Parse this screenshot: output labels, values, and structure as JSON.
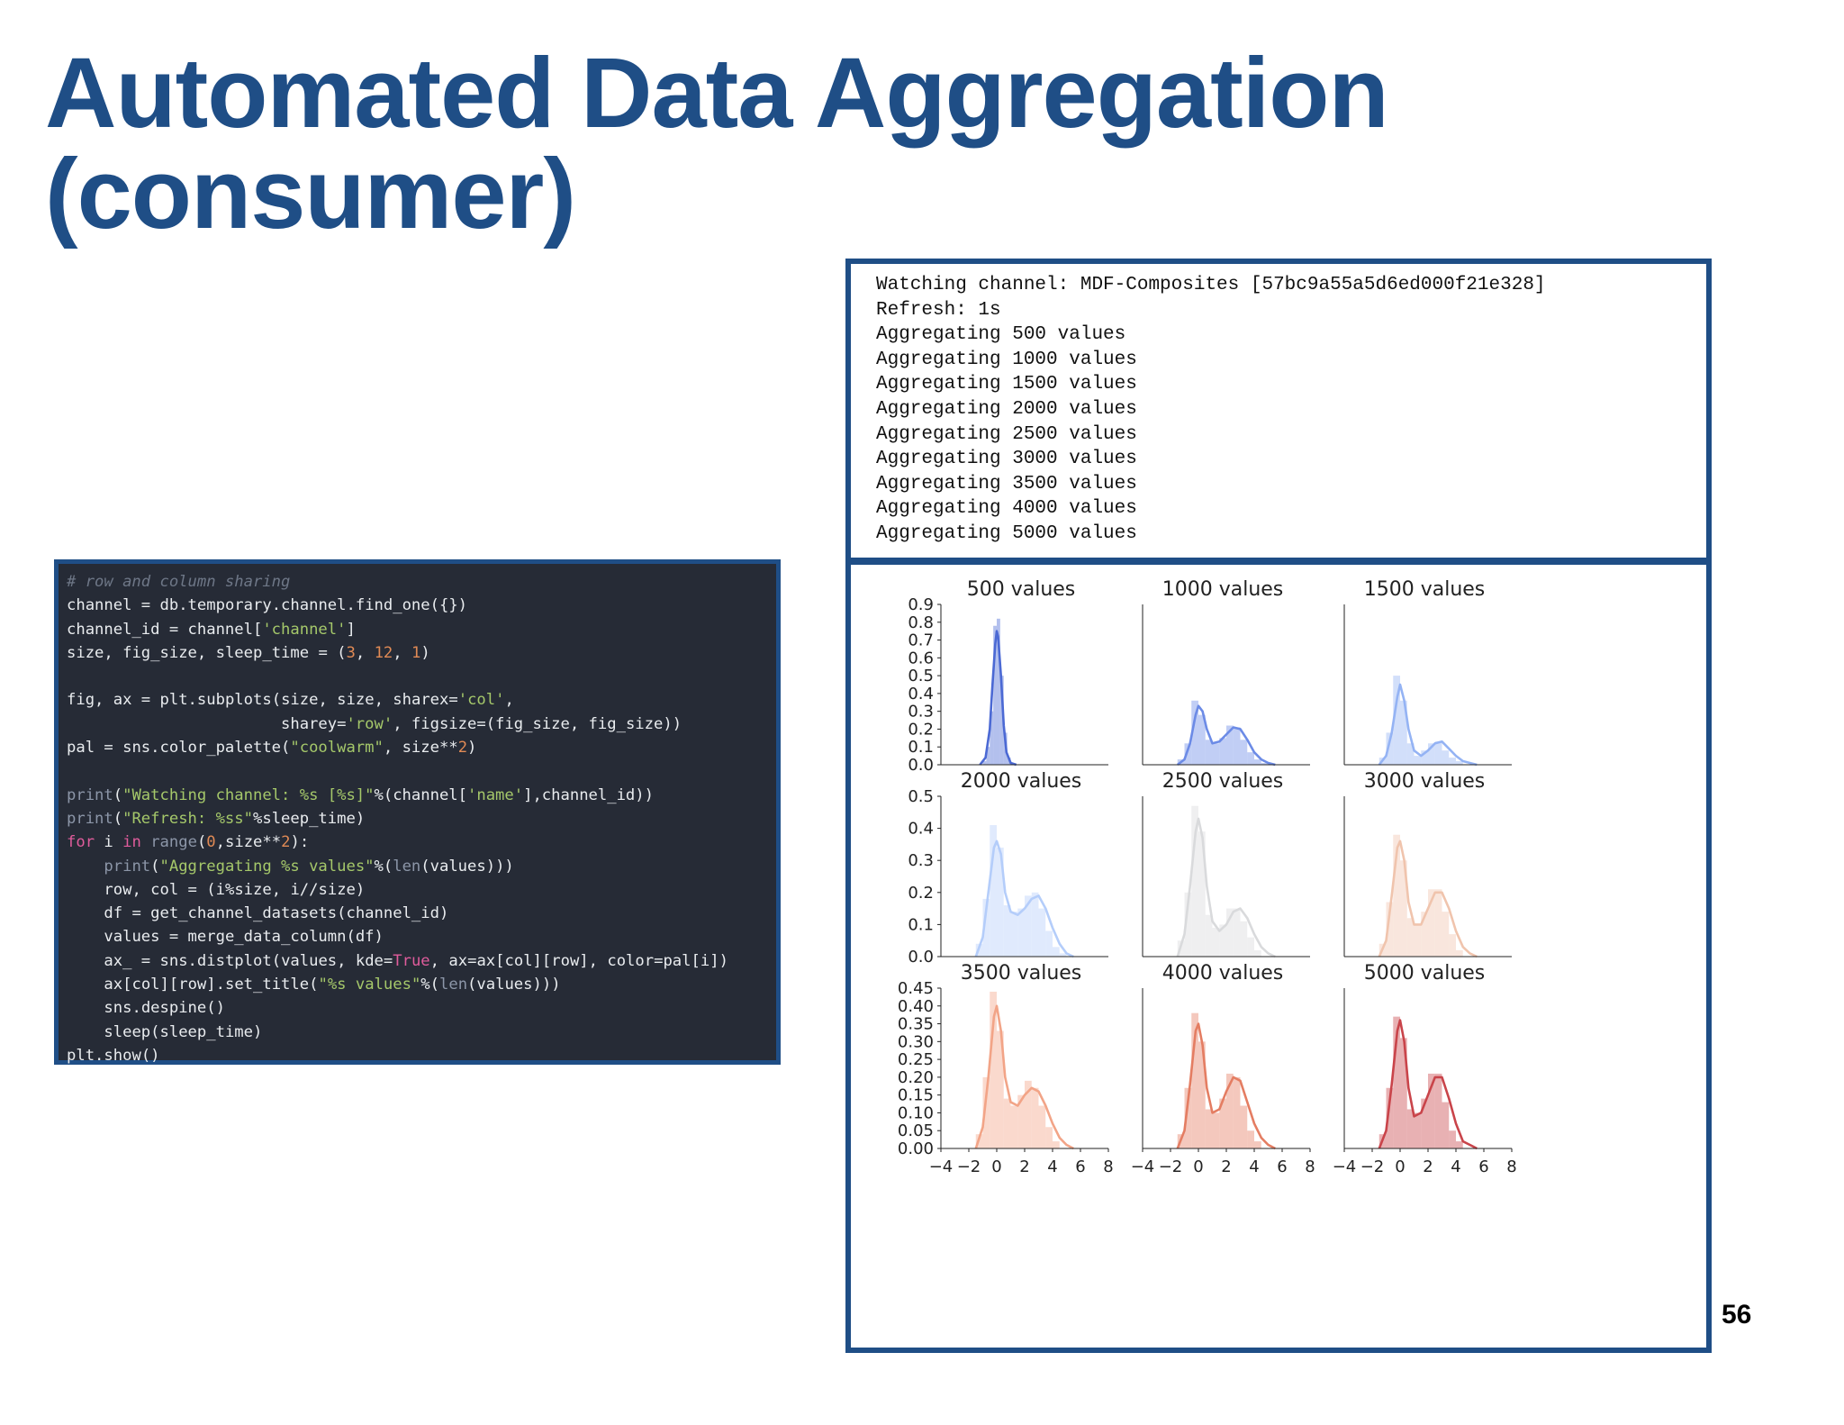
{
  "slide": {
    "title_line1": "Automated Data Aggregation",
    "title_line2": "(consumer)",
    "page_number": "56"
  },
  "code": {
    "lines": [
      "# row and column sharing",
      "channel = db.temporary.channel.find_one({})",
      "channel_id = channel['channel']",
      "size, fig_size, sleep_time = (3, 12, 1)",
      "",
      "fig, ax = plt.subplots(size, size, sharex='col',",
      "                       sharey='row', figsize=(fig_size, fig_size))",
      "pal = sns.color_palette(\"coolwarm\", size**2)",
      "",
      "print(\"Watching channel: %s [%s]\"%(channel['name'],channel_id))",
      "print(\"Refresh: %ss\"%sleep_time)",
      "for i in range(0,size**2):",
      "    print(\"Aggregating %s values\"%(len(values)))",
      "    row, col = (i%size, i//size)",
      "    df = get_channel_datasets(channel_id)",
      "    values = merge_data_column(df)",
      "    ax_ = sns.distplot(values, kde=True, ax=ax[col][row], color=pal[i])",
      "    ax[col][row].set_title(\"%s values\"%(len(values)))",
      "    sns.despine()",
      "    sleep(sleep_time)",
      "plt.show()"
    ]
  },
  "console": {
    "lines": [
      "Watching channel: MDF-Composites [57bc9a55a5d6ed000f21e328]",
      "Refresh: 1s",
      "Aggregating 500 values",
      "Aggregating 1000 values",
      "Aggregating 1500 values",
      "Aggregating 2000 values",
      "Aggregating 2500 values",
      "Aggregating 3000 values",
      "Aggregating 3500 values",
      "Aggregating 4000 values",
      "Aggregating 5000 values"
    ]
  },
  "chart_data": {
    "type": "area",
    "layout": "3x3 grid, shared x per column, shared y per row",
    "xlim": [
      -4,
      8
    ],
    "x_ticks": [
      "−4",
      "−2",
      "0",
      "2",
      "4",
      "6",
      "8"
    ],
    "rows": [
      {
        "ylim": [
          0,
          0.9
        ],
        "y_ticks": [
          "0.0",
          "0.1",
          "0.2",
          "0.3",
          "0.4",
          "0.5",
          "0.6",
          "0.7",
          "0.8",
          "0.9"
        ],
        "tick_values": [
          0,
          0.1,
          0.2,
          0.3,
          0.4,
          0.5,
          0.6,
          0.7,
          0.8,
          0.9
        ]
      },
      {
        "ylim": [
          0,
          0.5
        ],
        "y_ticks": [
          "0.0",
          "0.1",
          "0.2",
          "0.3",
          "0.4",
          "0.5"
        ],
        "tick_values": [
          0,
          0.1,
          0.2,
          0.3,
          0.4,
          0.5
        ]
      },
      {
        "ylim": [
          0,
          0.45
        ],
        "y_ticks": [
          "0.00",
          "0.05",
          "0.10",
          "0.15",
          "0.20",
          "0.25",
          "0.30",
          "0.35",
          "0.40",
          "0.45"
        ],
        "tick_values": [
          0,
          0.05,
          0.1,
          0.15,
          0.2,
          0.25,
          0.3,
          0.35,
          0.4,
          0.45
        ]
      }
    ],
    "panels": [
      {
        "title": "500 values",
        "color": "#4b69d4",
        "kde": {
          "x": [
            -1.2,
            -0.8,
            -0.5,
            -0.3,
            -0.1,
            0.0,
            0.1,
            0.3,
            0.5,
            0.7,
            1.0,
            1.4
          ],
          "y": [
            0.0,
            0.04,
            0.2,
            0.45,
            0.68,
            0.75,
            0.72,
            0.5,
            0.22,
            0.07,
            0.01,
            0.0
          ]
        },
        "bins": {
          "edges_start": -1.0,
          "width": 0.25,
          "heights": [
            0.02,
            0.1,
            0.3,
            0.78,
            0.82,
            0.5,
            0.18,
            0.04
          ]
        }
      },
      {
        "title": "1000 values",
        "color": "#6c8be6",
        "kde": {
          "x": [
            -1.5,
            -1.0,
            -0.6,
            -0.2,
            0.0,
            0.3,
            0.6,
            1.0,
            1.5,
            2.0,
            2.5,
            3.0,
            3.5,
            4.0,
            4.5,
            5.0,
            5.5
          ],
          "y": [
            0.0,
            0.03,
            0.12,
            0.28,
            0.33,
            0.3,
            0.2,
            0.12,
            0.13,
            0.17,
            0.21,
            0.2,
            0.14,
            0.07,
            0.03,
            0.01,
            0.0
          ]
        },
        "bins": {
          "edges_start": -1.5,
          "width": 0.5,
          "heights": [
            0.03,
            0.12,
            0.36,
            0.28,
            0.14,
            0.12,
            0.15,
            0.22,
            0.21,
            0.14,
            0.07,
            0.03,
            0.01
          ]
        }
      },
      {
        "title": "1500 values",
        "color": "#94b3f4",
        "kde": {
          "x": [
            -1.5,
            -1.0,
            -0.6,
            -0.2,
            0.0,
            0.3,
            0.6,
            1.0,
            1.5,
            2.0,
            2.5,
            3.0,
            3.5,
            4.0,
            4.5,
            5.0,
            5.5
          ],
          "y": [
            0.0,
            0.05,
            0.18,
            0.38,
            0.45,
            0.36,
            0.2,
            0.08,
            0.05,
            0.08,
            0.12,
            0.13,
            0.09,
            0.05,
            0.02,
            0.01,
            0.0
          ]
        },
        "bins": {
          "edges_start": -1.5,
          "width": 0.5,
          "heights": [
            0.04,
            0.18,
            0.5,
            0.36,
            0.12,
            0.05,
            0.08,
            0.12,
            0.13,
            0.08,
            0.04,
            0.02,
            0.0
          ]
        }
      },
      {
        "title": "2000 values",
        "color": "#b4cdfa",
        "kde": {
          "x": [
            -1.5,
            -1.0,
            -0.6,
            -0.2,
            0.0,
            0.3,
            0.6,
            1.0,
            1.5,
            2.0,
            2.5,
            3.0,
            3.5,
            4.0,
            4.5,
            5.0,
            5.5
          ],
          "y": [
            0.0,
            0.06,
            0.2,
            0.34,
            0.36,
            0.32,
            0.2,
            0.14,
            0.13,
            0.15,
            0.18,
            0.19,
            0.15,
            0.09,
            0.04,
            0.01,
            0.0
          ]
        },
        "bins": {
          "edges_start": -1.5,
          "width": 0.5,
          "heights": [
            0.04,
            0.18,
            0.41,
            0.34,
            0.16,
            0.14,
            0.15,
            0.19,
            0.2,
            0.15,
            0.08,
            0.03,
            0.01
          ]
        }
      },
      {
        "title": "2500 values",
        "color": "#d9dadc",
        "kde": {
          "x": [
            -1.5,
            -1.0,
            -0.6,
            -0.2,
            0.0,
            0.3,
            0.6,
            1.0,
            1.5,
            2.0,
            2.5,
            3.0,
            3.5,
            4.0,
            4.5,
            5.0,
            5.5
          ],
          "y": [
            0.0,
            0.07,
            0.22,
            0.39,
            0.43,
            0.37,
            0.22,
            0.11,
            0.08,
            0.1,
            0.14,
            0.15,
            0.12,
            0.07,
            0.03,
            0.01,
            0.0
          ]
        },
        "bins": {
          "edges_start": -1.5,
          "width": 0.5,
          "heights": [
            0.05,
            0.2,
            0.47,
            0.39,
            0.13,
            0.09,
            0.1,
            0.15,
            0.15,
            0.11,
            0.06,
            0.02,
            0.0
          ]
        }
      },
      {
        "title": "3000 values",
        "color": "#f0c4ad",
        "kde": {
          "x": [
            -1.5,
            -1.0,
            -0.6,
            -0.2,
            0.0,
            0.3,
            0.6,
            1.0,
            1.5,
            2.0,
            2.5,
            3.0,
            3.5,
            4.0,
            4.5,
            5.0,
            5.5
          ],
          "y": [
            0.0,
            0.05,
            0.19,
            0.34,
            0.36,
            0.3,
            0.17,
            0.1,
            0.1,
            0.15,
            0.2,
            0.2,
            0.15,
            0.08,
            0.03,
            0.01,
            0.0
          ]
        },
        "bins": {
          "edges_start": -1.5,
          "width": 0.5,
          "heights": [
            0.04,
            0.17,
            0.38,
            0.3,
            0.12,
            0.1,
            0.14,
            0.21,
            0.21,
            0.14,
            0.07,
            0.02,
            0.0
          ]
        }
      },
      {
        "title": "3500 values",
        "color": "#f2a487",
        "kde": {
          "x": [
            -1.5,
            -1.0,
            -0.6,
            -0.2,
            0.0,
            0.3,
            0.6,
            1.0,
            1.5,
            2.0,
            2.5,
            3.0,
            3.5,
            4.0,
            4.5,
            5.0,
            5.5
          ],
          "y": [
            0.0,
            0.06,
            0.2,
            0.37,
            0.4,
            0.33,
            0.2,
            0.13,
            0.12,
            0.15,
            0.17,
            0.16,
            0.12,
            0.07,
            0.03,
            0.01,
            0.0
          ]
        },
        "bins": {
          "edges_start": -1.5,
          "width": 0.5,
          "heights": [
            0.04,
            0.2,
            0.44,
            0.33,
            0.14,
            0.12,
            0.15,
            0.19,
            0.17,
            0.12,
            0.06,
            0.02,
            0.0
          ]
        }
      },
      {
        "title": "4000 values",
        "color": "#e47d62",
        "kde": {
          "x": [
            -1.5,
            -1.0,
            -0.6,
            -0.2,
            0.0,
            0.3,
            0.6,
            1.0,
            1.5,
            2.0,
            2.5,
            3.0,
            3.5,
            4.0,
            4.5,
            5.0,
            5.5
          ],
          "y": [
            0.0,
            0.05,
            0.18,
            0.33,
            0.35,
            0.29,
            0.17,
            0.1,
            0.11,
            0.16,
            0.2,
            0.19,
            0.13,
            0.07,
            0.03,
            0.01,
            0.0
          ]
        },
        "bins": {
          "edges_start": -1.5,
          "width": 0.5,
          "heights": [
            0.04,
            0.17,
            0.38,
            0.3,
            0.11,
            0.1,
            0.14,
            0.21,
            0.2,
            0.12,
            0.05,
            0.02,
            0.0
          ]
        }
      },
      {
        "title": "5000 values",
        "color": "#c9444a",
        "kde": {
          "x": [
            -1.5,
            -1.0,
            -0.6,
            -0.2,
            0.0,
            0.3,
            0.6,
            1.0,
            1.5,
            2.0,
            2.5,
            3.0,
            3.5,
            4.0,
            4.5,
            5.0,
            5.5
          ],
          "y": [
            0.0,
            0.05,
            0.18,
            0.33,
            0.36,
            0.3,
            0.17,
            0.09,
            0.1,
            0.15,
            0.2,
            0.2,
            0.14,
            0.07,
            0.02,
            0.01,
            0.0
          ]
        },
        "bins": {
          "edges_start": -1.5,
          "width": 0.5,
          "heights": [
            0.04,
            0.17,
            0.37,
            0.31,
            0.11,
            0.1,
            0.14,
            0.21,
            0.21,
            0.13,
            0.05,
            0.02,
            0.0
          ]
        }
      }
    ]
  }
}
